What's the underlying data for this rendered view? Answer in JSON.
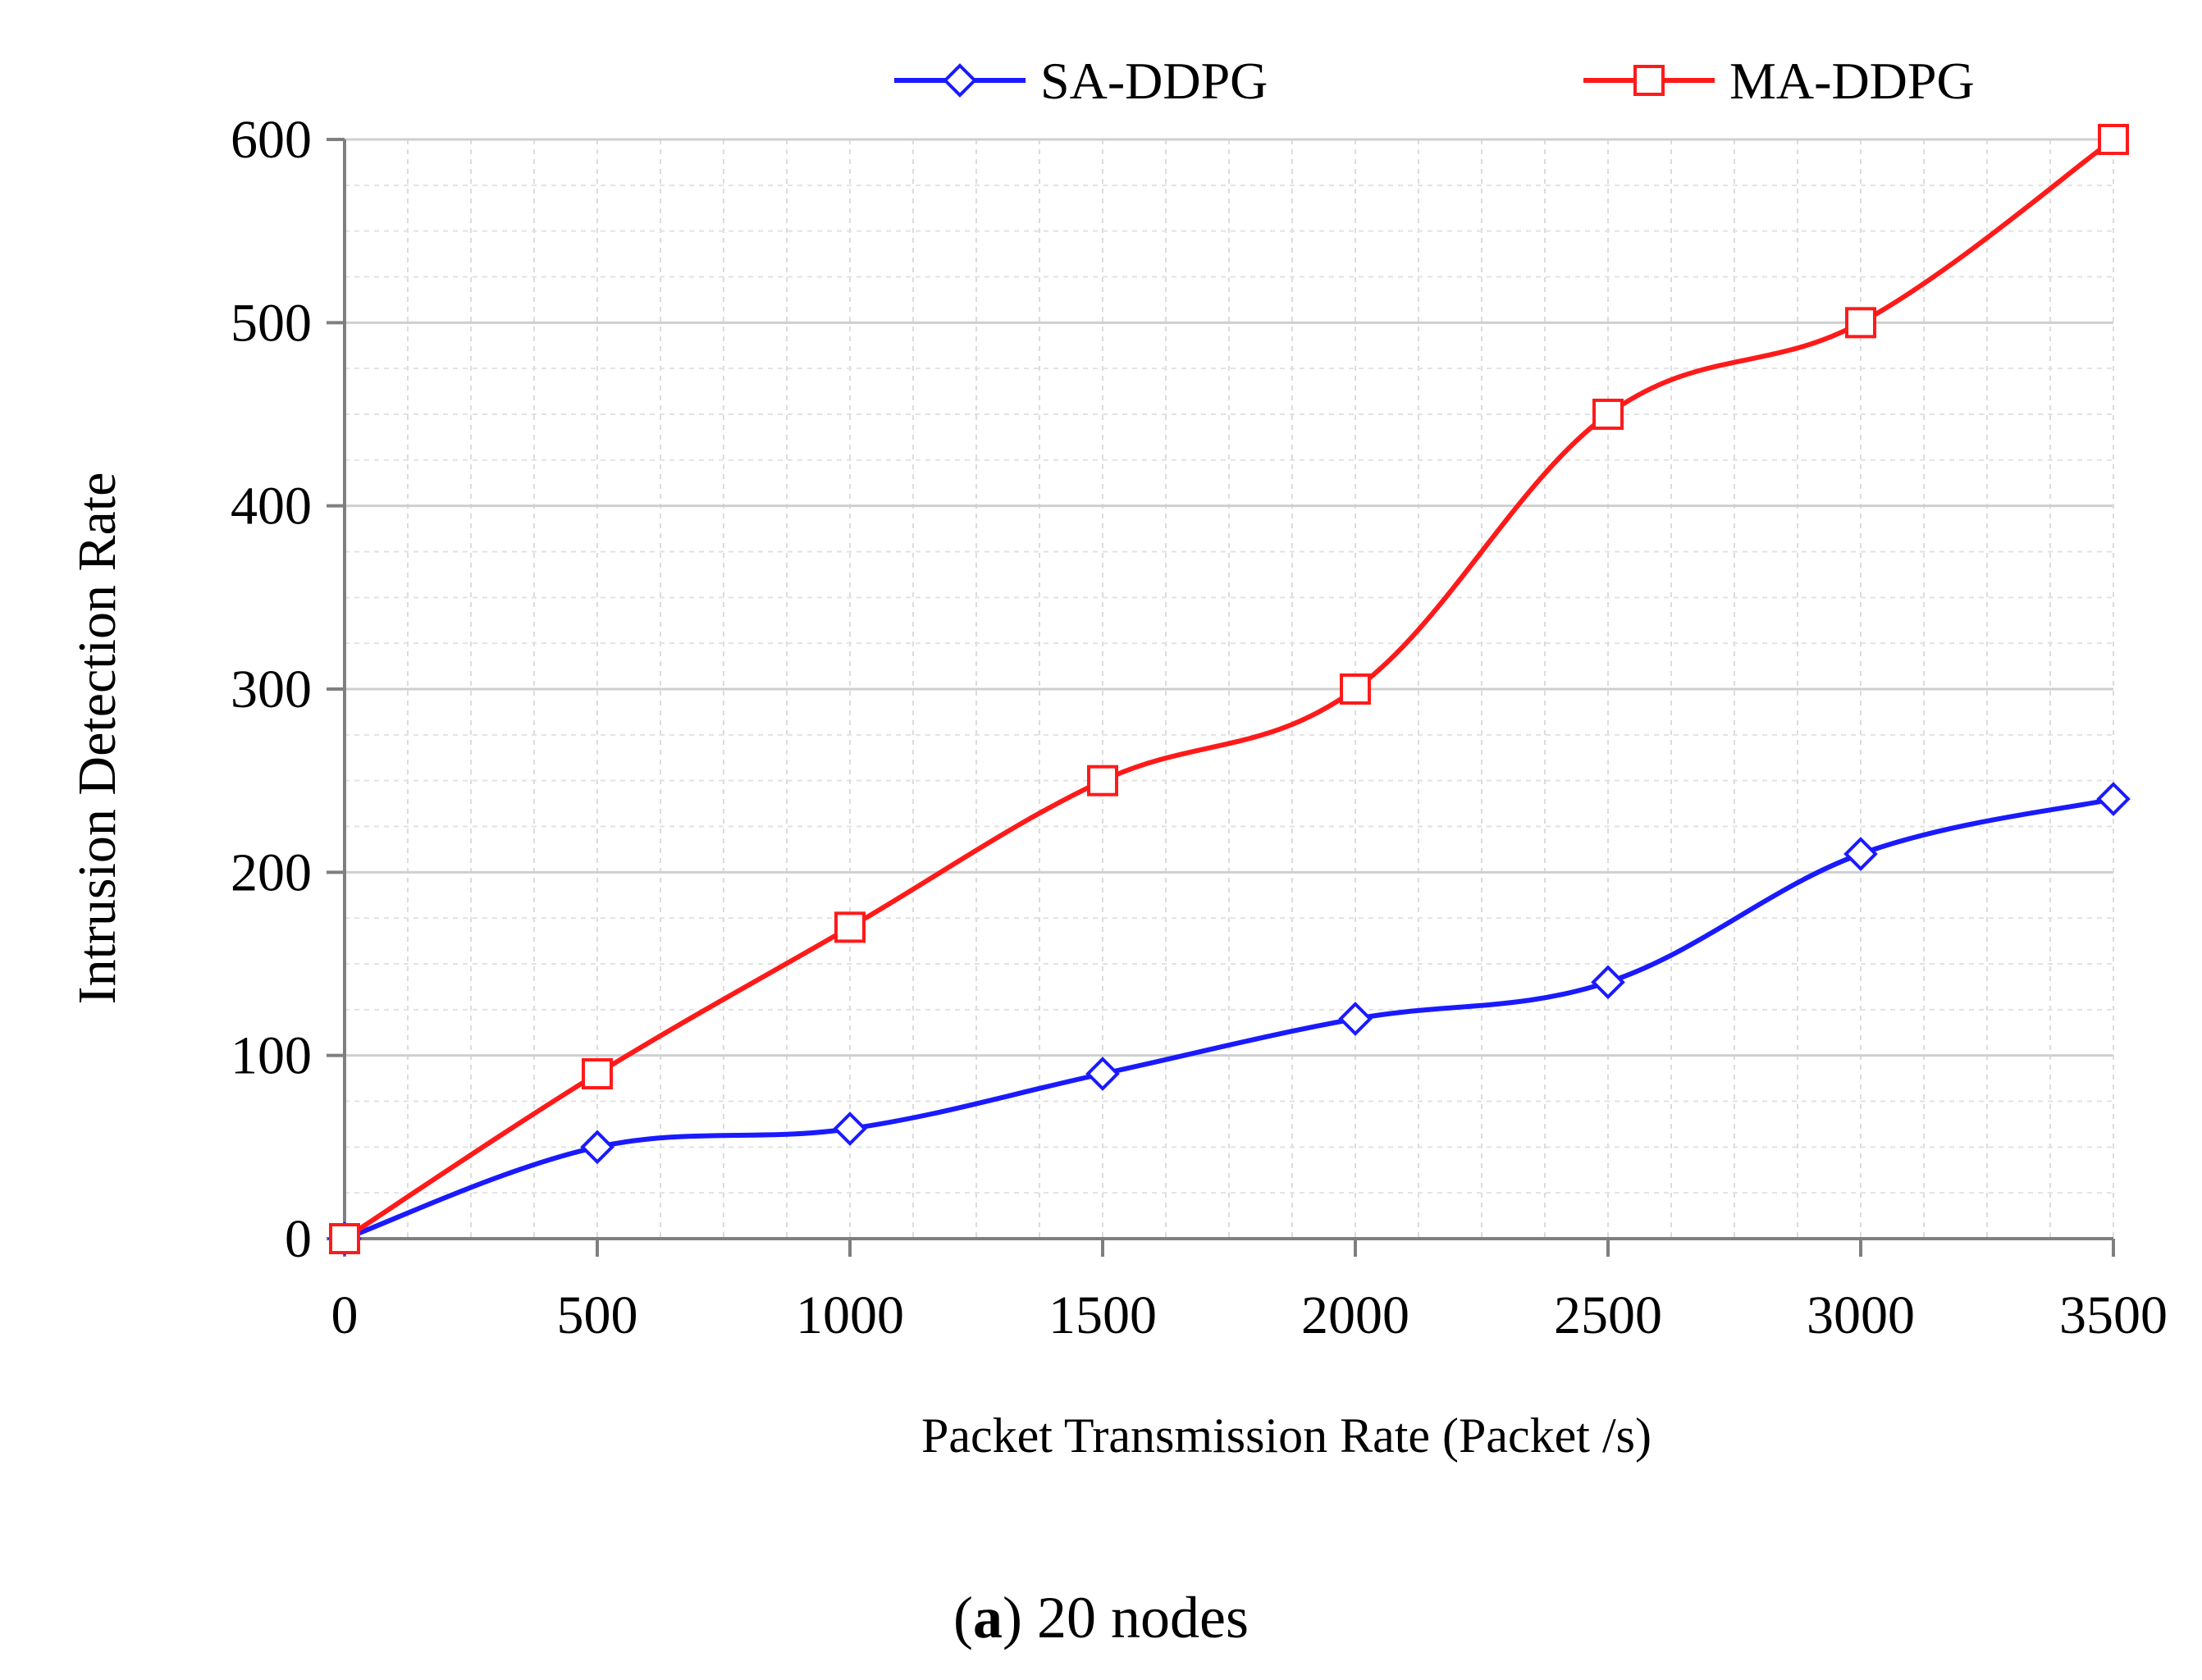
{
  "chart_data": {
    "type": "line",
    "title": "",
    "xlabel": "Packet Transmission Rate (Packet /s)",
    "ylabel": "Intrusion Detection Rate",
    "x": [
      0,
      500,
      1000,
      1500,
      2000,
      2500,
      3000,
      3500
    ],
    "xticks": [
      0,
      500,
      1000,
      1500,
      2000,
      2500,
      3000,
      3500
    ],
    "yticks": [
      0,
      100,
      200,
      300,
      400,
      500,
      600
    ],
    "xlim": [
      0,
      3500
    ],
    "ylim": [
      0,
      600
    ],
    "grid": true,
    "legend_position": "top",
    "series": [
      {
        "name": "SA-DDPG",
        "color": "#1a1aff",
        "marker": "diamond",
        "values": [
          0,
          50,
          60,
          90,
          120,
          140,
          210,
          240
        ]
      },
      {
        "name": "MA-DDPG",
        "color": "#ff1a1a",
        "marker": "square",
        "values": [
          0,
          90,
          170,
          250,
          300,
          450,
          500,
          600
        ]
      }
    ]
  },
  "caption": {
    "label": "a",
    "open": "(",
    "close": ")",
    "text": " 20 nodes"
  }
}
